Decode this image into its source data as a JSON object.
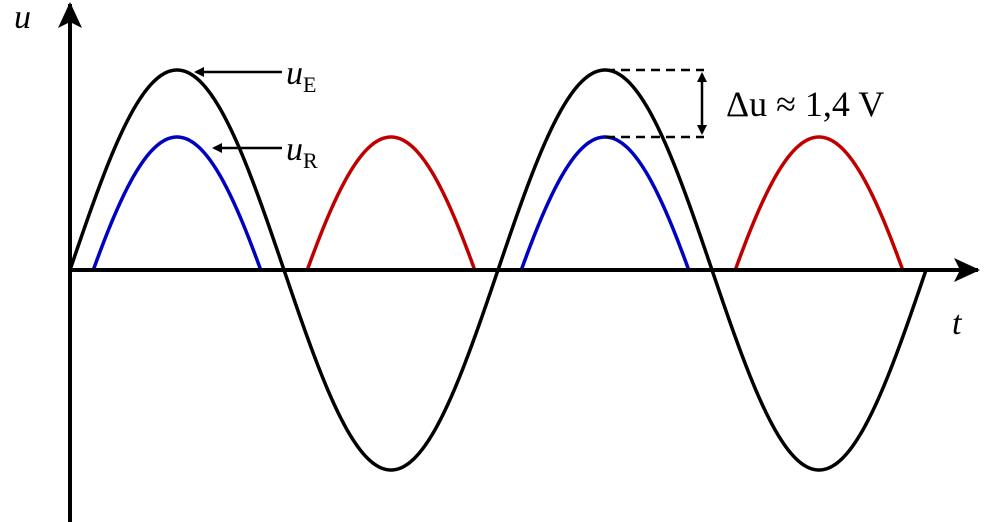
{
  "axes": {
    "y_label": "u",
    "x_label": "t"
  },
  "labels": [
    {
      "main": "u",
      "sub": "E"
    },
    {
      "main": "u",
      "sub": "R"
    }
  ],
  "annotation": "Δu ≈ 1,4 V"
}
